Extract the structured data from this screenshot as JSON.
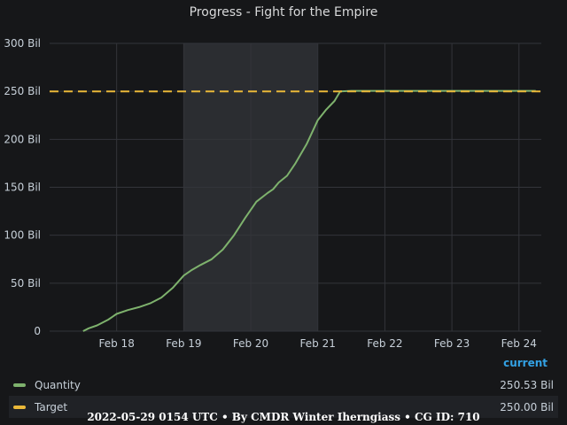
{
  "panel": {
    "title": "Progress - Fight for the Empire",
    "legend_header": "current"
  },
  "legend": [
    {
      "label": "Quantity",
      "value": "250.53 Bil",
      "color": "#7eb26d"
    },
    {
      "label": "Target",
      "value": "250.00 Bil",
      "color": "#eab839"
    }
  ],
  "footer": "2022-05-29 0154 UTC • By CMDR Winter Iherngiass • CG ID: 710",
  "chart_data": {
    "type": "line",
    "title": "Progress - Fight for the Empire",
    "xlabel": "",
    "ylabel": "",
    "x_range": [
      "2022-02-17T00:00",
      "2022-02-24T08:00"
    ],
    "ylim": [
      0,
      300
    ],
    "y_ticks": [
      0,
      50,
      100,
      150,
      200,
      250,
      300
    ],
    "y_tick_labels": [
      "0",
      "50 Bil",
      "100 Bil",
      "150 Bil",
      "200 Bil",
      "250 Bil",
      "300 Bil"
    ],
    "x_ticks": [
      "2022-02-18",
      "2022-02-19",
      "2022-02-20",
      "2022-02-21",
      "2022-02-22",
      "2022-02-23",
      "2022-02-24"
    ],
    "x_tick_labels": [
      "Feb 18",
      "Feb 19",
      "Feb 20",
      "Feb 21",
      "Feb 22",
      "Feb 23",
      "Feb 24"
    ],
    "grid": true,
    "shaded_region": [
      "2022-02-19T00:00",
      "2022-02-21T00:00"
    ],
    "series": [
      {
        "name": "Quantity",
        "color": "#7eb26d",
        "style": "solid",
        "points": [
          [
            "2022-02-17T12:00",
            0
          ],
          [
            "2022-02-17T14:00",
            3
          ],
          [
            "2022-02-17T17:00",
            6
          ],
          [
            "2022-02-17T21:00",
            12
          ],
          [
            "2022-02-18T00:00",
            18
          ],
          [
            "2022-02-18T04:00",
            22
          ],
          [
            "2022-02-18T08:00",
            25
          ],
          [
            "2022-02-18T12:00",
            29
          ],
          [
            "2022-02-18T16:00",
            35
          ],
          [
            "2022-02-18T20:00",
            45
          ],
          [
            "2022-02-19T00:00",
            58
          ],
          [
            "2022-02-19T03:00",
            64
          ],
          [
            "2022-02-19T06:00",
            69
          ],
          [
            "2022-02-19T10:00",
            75
          ],
          [
            "2022-02-19T14:00",
            85
          ],
          [
            "2022-02-19T18:00",
            100
          ],
          [
            "2022-02-19T22:00",
            118
          ],
          [
            "2022-02-20T02:00",
            135
          ],
          [
            "2022-02-20T06:00",
            144
          ],
          [
            "2022-02-20T08:00",
            148
          ],
          [
            "2022-02-20T10:00",
            155
          ],
          [
            "2022-02-20T13:00",
            162
          ],
          [
            "2022-02-20T16:00",
            175
          ],
          [
            "2022-02-20T20:00",
            195
          ],
          [
            "2022-02-21T00:00",
            220
          ],
          [
            "2022-02-21T03:00",
            231
          ],
          [
            "2022-02-21T06:00",
            240
          ],
          [
            "2022-02-21T08:00",
            250
          ],
          [
            "2022-02-21T12:00",
            250.5
          ],
          [
            "2022-02-22T00:00",
            250.5
          ],
          [
            "2022-02-23T00:00",
            250.5
          ],
          [
            "2022-02-24T00:00",
            250.5
          ],
          [
            "2022-02-24T06:00",
            250.53
          ]
        ]
      },
      {
        "name": "Target",
        "color": "#eab839",
        "style": "dashed",
        "points": [
          [
            "2022-02-17T00:00",
            250
          ],
          [
            "2022-02-24T08:00",
            250
          ]
        ]
      }
    ]
  }
}
